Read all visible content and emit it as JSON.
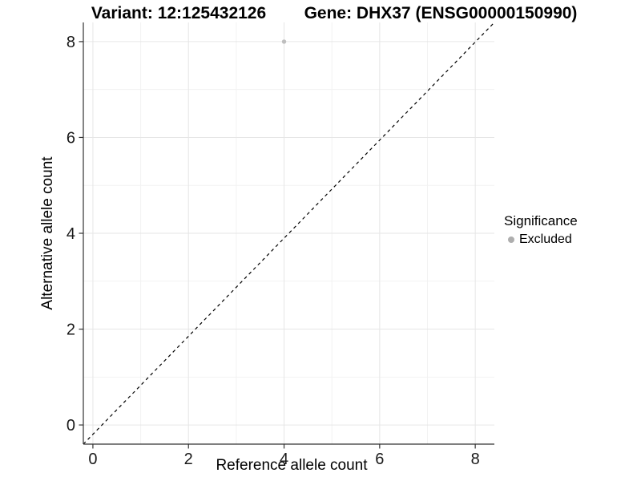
{
  "titles": {
    "variant": "Variant: 12:125432126",
    "gene": "Gene: DHX37 (ENSG00000150990)"
  },
  "chart_data": {
    "type": "scatter",
    "title_left": "Variant: 12:125432126",
    "title_right": "Gene: DHX37 (ENSG00000150990)",
    "xlabel": "Reference allele count",
    "ylabel": "Alternative allele count",
    "xlim": [
      -0.2,
      8.4
    ],
    "ylim": [
      -0.4,
      8.4
    ],
    "xticks": [
      0,
      2,
      4,
      6,
      8
    ],
    "yticks": [
      0,
      2,
      4,
      6,
      8
    ],
    "x_minor_ticks": [
      1,
      3,
      5,
      7
    ],
    "y_minor_ticks": [
      1,
      3,
      5,
      7
    ],
    "grid": true,
    "reference_line": {
      "type": "identity",
      "style": "dashed",
      "color": "#000000"
    },
    "series": [
      {
        "name": "Excluded",
        "color": "#bebebe",
        "points": [
          {
            "x": 4,
            "y": 8
          }
        ]
      }
    ],
    "legend": {
      "title": "Significance",
      "position": "right",
      "entries": [
        {
          "label": "Excluded",
          "color": "#aeaeae"
        }
      ]
    },
    "colors": {
      "grid_major": "#e6e6e6",
      "grid_minor": "#f2f2f2",
      "axis_line": "#333333",
      "tick_label": "#1a1a1a",
      "background": "#ffffff"
    }
  }
}
